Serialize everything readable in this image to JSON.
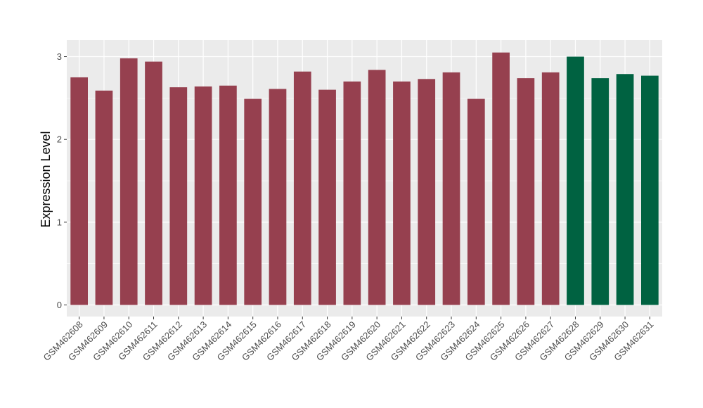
{
  "chart_data": {
    "type": "bar",
    "title": "",
    "xlabel": "",
    "ylabel": "Expression Level",
    "ylim": [
      -0.14,
      3.2
    ],
    "yticks": [
      0,
      1,
      2,
      3
    ],
    "grid": true,
    "legend": "none",
    "panel_background": "#ebebeb",
    "grid_color": "#ffffff",
    "colors": {
      "group1": "#96404f",
      "group2": "#006241"
    },
    "categories": [
      "GSM462608",
      "GSM462609",
      "GSM462610",
      "GSM462611",
      "GSM462612",
      "GSM462613",
      "GSM462614",
      "GSM462615",
      "GSM462616",
      "GSM462617",
      "GSM462618",
      "GSM462619",
      "GSM462620",
      "GSM462621",
      "GSM462622",
      "GSM462623",
      "GSM462624",
      "GSM462625",
      "GSM462626",
      "GSM462627",
      "GSM462628",
      "GSM462629",
      "GSM462630",
      "GSM462631"
    ],
    "values": [
      2.75,
      2.59,
      2.98,
      2.94,
      2.63,
      2.64,
      2.65,
      2.49,
      2.61,
      2.82,
      2.6,
      2.7,
      2.84,
      2.7,
      2.73,
      2.81,
      2.49,
      3.05,
      2.74,
      2.81,
      3.0,
      2.74,
      2.79,
      2.77
    ],
    "groups": [
      "group1",
      "group1",
      "group1",
      "group1",
      "group1",
      "group1",
      "group1",
      "group1",
      "group1",
      "group1",
      "group1",
      "group1",
      "group1",
      "group1",
      "group1",
      "group1",
      "group1",
      "group1",
      "group1",
      "group1",
      "group2",
      "group2",
      "group2",
      "group2"
    ]
  }
}
